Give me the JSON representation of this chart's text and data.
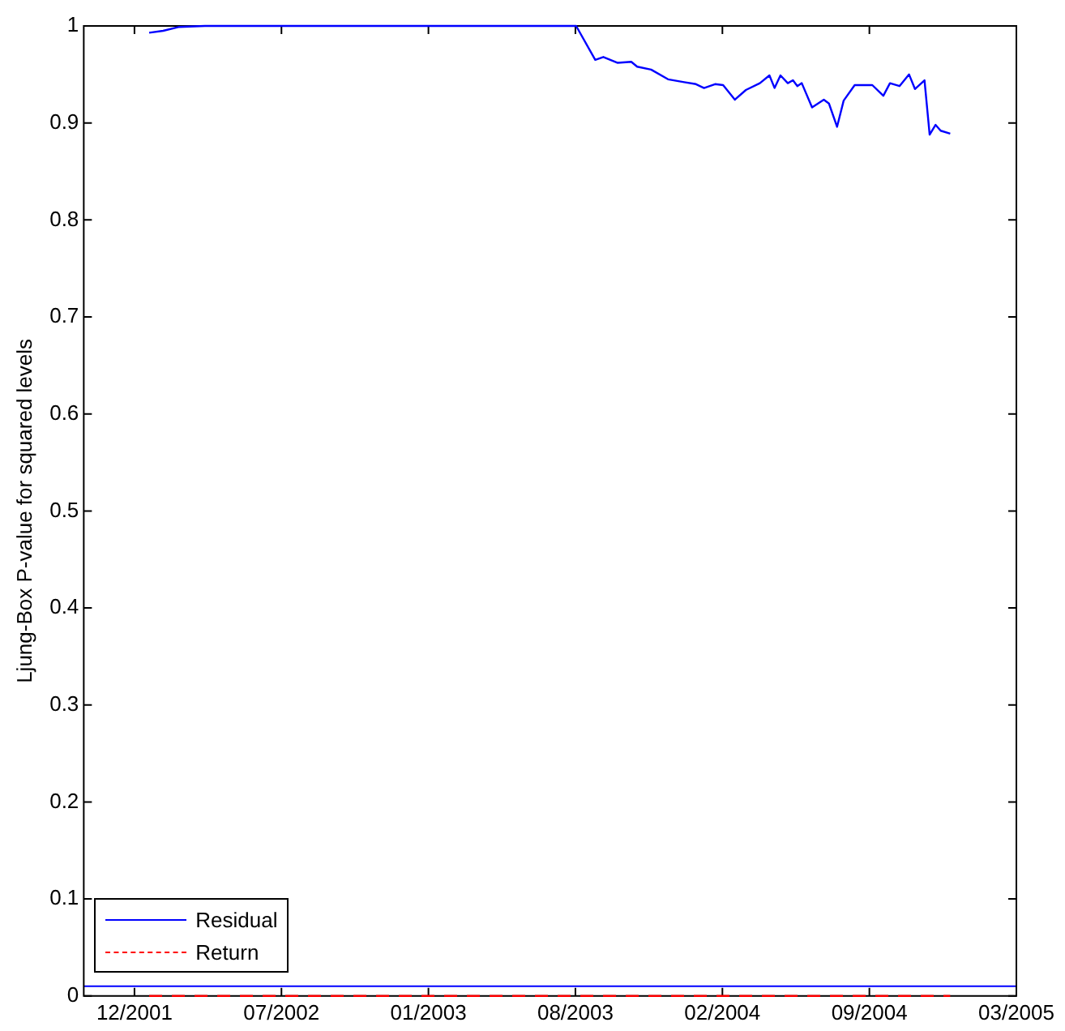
{
  "chart_data": {
    "type": "line",
    "ylabel": "Ljung-Box P-value for squared levels",
    "xlim": [
      "2001-10-07",
      "2005-03-29"
    ],
    "xticks": [
      {
        "value": "2001-12-15",
        "label": "12/2001"
      },
      {
        "value": "2002-07-03",
        "label": "07/2002"
      },
      {
        "value": "2003-01-19",
        "label": "01/2003"
      },
      {
        "value": "2003-08-07",
        "label": "08/2003"
      },
      {
        "value": "2004-02-23",
        "label": "02/2004"
      },
      {
        "value": "2004-09-10",
        "label": "09/2004"
      },
      {
        "value": "2005-03-29",
        "label": "03/2005"
      }
    ],
    "ylim": [
      0,
      1
    ],
    "yticks": [
      0,
      0.1,
      0.2,
      0.3,
      0.4,
      0.5,
      0.6,
      0.7,
      0.8,
      0.9,
      1
    ],
    "grid": false,
    "legend": "bottom left",
    "ref_lines": [
      {
        "axis": "y",
        "value": 0.01,
        "color": "#0000ff"
      }
    ],
    "series": [
      {
        "name": "Residual",
        "color": "#0000ff",
        "line_style": "solid",
        "x": [
          "2002-01-04",
          "2002-01-23",
          "2002-02-14",
          "2002-03-21",
          "2003-08-08",
          "2003-09-03",
          "2003-09-14",
          "2003-10-03",
          "2003-10-22",
          "2003-10-30",
          "2003-11-18",
          "2003-12-11",
          "2004-01-02",
          "2004-01-18",
          "2004-01-29",
          "2004-02-13",
          "2004-02-24",
          "2004-03-11",
          "2004-03-26",
          "2004-04-14",
          "2004-04-27",
          "2004-05-04",
          "2004-05-12",
          "2004-05-22",
          "2004-05-29",
          "2004-06-04",
          "2004-06-10",
          "2004-06-24",
          "2004-07-10",
          "2004-07-17",
          "2004-07-28",
          "2004-08-06",
          "2004-08-21",
          "2004-09-14",
          "2004-09-29",
          "2004-10-08",
          "2004-10-21",
          "2004-11-03",
          "2004-11-11",
          "2004-11-24",
          "2004-12-01",
          "2004-12-09",
          "2004-12-16",
          "2004-12-29"
        ],
        "values": [
          0.993,
          0.995,
          0.999,
          1.0,
          1.0,
          0.965,
          0.968,
          0.962,
          0.963,
          0.958,
          0.955,
          0.945,
          0.942,
          0.94,
          0.936,
          0.94,
          0.939,
          0.924,
          0.934,
          0.941,
          0.949,
          0.936,
          0.949,
          0.941,
          0.944,
          0.938,
          0.941,
          0.916,
          0.924,
          0.92,
          0.896,
          0.923,
          0.939,
          0.939,
          0.928,
          0.941,
          0.938,
          0.95,
          0.935,
          0.944,
          0.888,
          0.898,
          0.892,
          0.889
        ]
      },
      {
        "name": "Return",
        "color": "#ff0000",
        "line_style": "dashed",
        "x": [
          "2002-01-04",
          "2004-12-29"
        ],
        "values": [
          0,
          0
        ]
      }
    ]
  }
}
